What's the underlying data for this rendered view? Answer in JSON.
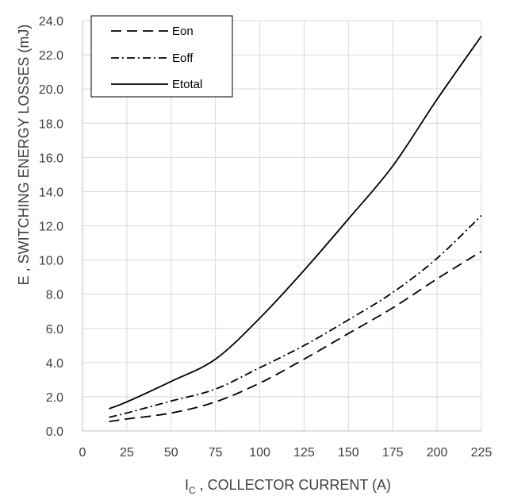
{
  "chart_data": {
    "type": "line",
    "xlabel_main": "I",
    "xlabel_sub": "C",
    "xlabel_rest": " , COLLECTOR CURRENT (A)",
    "ylabel": "E , SWITCHING ENERGY LOSSES (mJ)",
    "xlim": [
      0,
      225
    ],
    "ylim": [
      0,
      24
    ],
    "x_ticks": [
      "0",
      "25",
      "50",
      "75",
      "100",
      "125",
      "150",
      "175",
      "200",
      "225"
    ],
    "y_ticks": [
      "0.0",
      "2.0",
      "4.0",
      "6.0",
      "8.0",
      "10.0",
      "12.0",
      "14.0",
      "16.0",
      "18.0",
      "20.0",
      "22.0",
      "24.0"
    ],
    "grid": true,
    "legend_position": "top-left",
    "series": [
      {
        "name": "Eon",
        "line_style": "dashed",
        "color": "#000000",
        "points": [
          [
            15,
            0.55
          ],
          [
            25,
            0.7
          ],
          [
            50,
            1.05
          ],
          [
            75,
            1.7
          ],
          [
            100,
            2.8
          ],
          [
            125,
            4.2
          ],
          [
            150,
            5.7
          ],
          [
            175,
            7.2
          ],
          [
            200,
            8.9
          ],
          [
            225,
            10.5
          ]
        ]
      },
      {
        "name": "Eoff",
        "line_style": "dash-dot",
        "color": "#000000",
        "points": [
          [
            15,
            0.8
          ],
          [
            25,
            1.05
          ],
          [
            50,
            1.75
          ],
          [
            75,
            2.45
          ],
          [
            100,
            3.7
          ],
          [
            125,
            5.0
          ],
          [
            150,
            6.5
          ],
          [
            175,
            8.1
          ],
          [
            200,
            10.1
          ],
          [
            225,
            12.6
          ]
        ]
      },
      {
        "name": "Etotal",
        "line_style": "solid",
        "color": "#000000",
        "points": [
          [
            15,
            1.3
          ],
          [
            25,
            1.7
          ],
          [
            50,
            2.9
          ],
          [
            75,
            4.2
          ],
          [
            100,
            6.6
          ],
          [
            125,
            9.4
          ],
          [
            150,
            12.4
          ],
          [
            175,
            15.5
          ],
          [
            200,
            19.4
          ],
          [
            225,
            23.1
          ]
        ]
      }
    ]
  }
}
